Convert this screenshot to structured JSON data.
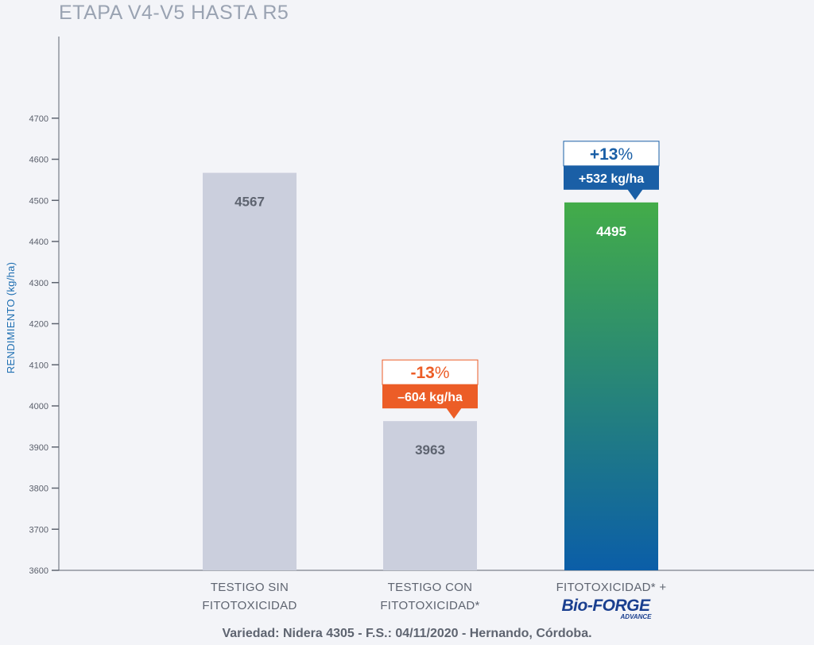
{
  "title": "ETAPA V4-V5 HASTA R5",
  "footnote": "Variedad: Nidera 4305 - F.S.: 04/11/2020 - Hernando, Córdoba.",
  "colors": {
    "neutral_bar": "#cbcfdd",
    "neutral_value": "#5e6470",
    "green_top": "#43ac49",
    "blue_bottom": "#0b5ea8",
    "negative": "#ec5d27",
    "positive": "#1a5fa6",
    "axis": "#5e6470"
  },
  "logo": {
    "main": "Bio-FORGE",
    "sub": "ADVANCE"
  },
  "chart_data": {
    "type": "bar",
    "title": "ETAPA V4-V5 HASTA R5",
    "ylabel": "RENDIMIENTO (kg/ha)",
    "xlabel": "",
    "ylim": [
      3600,
      4800
    ],
    "yticks": [
      3600,
      3700,
      3800,
      3900,
      4000,
      4100,
      4200,
      4300,
      4400,
      4500,
      4600,
      4700
    ],
    "grid": false,
    "categories": [
      [
        "TESTIGO SIN",
        "FITOTOXICIDAD"
      ],
      [
        "TESTIGO CON",
        "FITOTOXICIDAD*"
      ],
      [
        "FITOTOXICIDAD* +",
        ""
      ]
    ],
    "values": [
      4567,
      3963,
      4495
    ],
    "value_labels": [
      "4567",
      "3963",
      "4495"
    ],
    "annotations": [
      {
        "bar": 1,
        "pct": "-13",
        "pct_sign": "%",
        "amount": "–604 kg/ha",
        "style": "negative"
      },
      {
        "bar": 2,
        "pct": "+13",
        "pct_sign": "%",
        "amount": "+532 kg/ha",
        "style": "positive"
      }
    ]
  }
}
